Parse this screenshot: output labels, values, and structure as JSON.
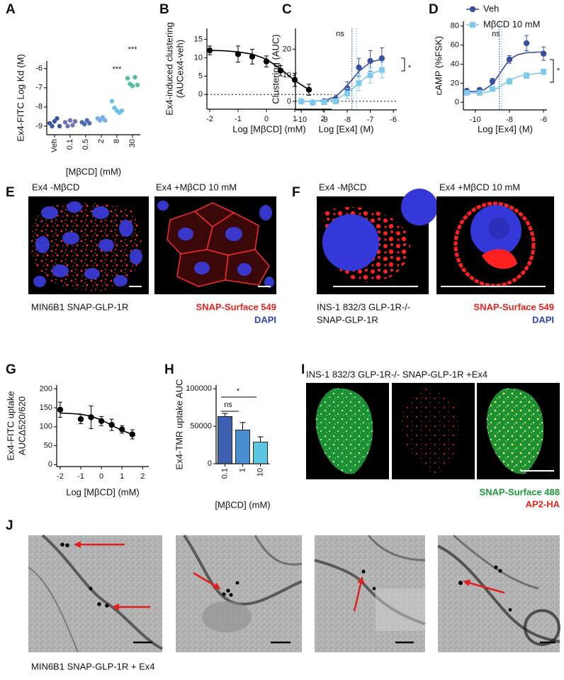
{
  "chart_data": [
    {
      "panel": "A",
      "type": "strip",
      "ylabel": "Ex4-FITC Log Kd (M)",
      "xlabel": "[MβCD] (mM)",
      "categories": [
        "Veh",
        "0.1",
        "0.5",
        "2",
        "8",
        "30"
      ],
      "colors": [
        "#3f54a3",
        "#6d75b8",
        "#4a6cb3",
        "#75aee0",
        "#68c3ea",
        "#55bf9c"
      ],
      "values": [
        [
          -8.85,
          -9.0,
          -8.75,
          -8.6,
          -9.0
        ],
        [
          -8.8,
          -9.0,
          -8.7,
          -8.95,
          -8.75
        ],
        [
          -8.8,
          -8.9,
          -8.7,
          -8.85
        ],
        [
          -8.6,
          -8.7,
          -8.55,
          -8.7
        ],
        [
          -7.7,
          -8.05,
          -8.2,
          -8.3,
          -8.2
        ],
        [
          -6.5,
          -6.8,
          -6.9,
          -6.45,
          -6.85
        ]
      ],
      "ylim": [
        -9.45,
        -5.6
      ],
      "yticks": [
        -6,
        -7,
        -8,
        -9
      ],
      "annotations": [
        "***",
        "***"
      ]
    },
    {
      "panel": "B",
      "type": "line",
      "ylabel": [
        "Ex4-induced clustering",
        "(AUCex4-veh)"
      ],
      "xlabel": "Log [MβCD] (mM)",
      "xlim": [
        -2.1,
        2.3
      ],
      "xticks": [
        -2,
        -1,
        0,
        1,
        2
      ],
      "ylim": [
        -4,
        18
      ],
      "yticks": [
        0,
        5,
        10,
        15
      ],
      "hline": 0,
      "series": [
        {
          "color": "#000000",
          "marker": "circle",
          "x": [
            -2,
            -1,
            -0.5,
            0,
            0.5,
            1,
            1.5
          ],
          "values": [
            12,
            11,
            10.3,
            9,
            6.5,
            4,
            1.3
          ],
          "errors": [
            1.2,
            2.2,
            2,
            1.5,
            1.4,
            1.8,
            1.5
          ],
          "fit_x": [
            -2,
            -1.5,
            -1,
            -0.5,
            0,
            0.5,
            1,
            1.5
          ],
          "fit_values": [
            12,
            11.9,
            11.6,
            11,
            9.6,
            7,
            3.8,
            1.3
          ]
        }
      ]
    },
    {
      "panel": "C",
      "type": "line",
      "ylabel": "Clustering (AUC)",
      "xlabel": "Log [Ex4] (M)",
      "xlim": [
        -10.25,
        -5.85
      ],
      "xticks": [
        -10,
        -9,
        -8,
        -7,
        -6
      ],
      "ylim": [
        -3.3,
        28
      ],
      "yticks": [
        0,
        10,
        20
      ],
      "hline": 0,
      "series": [
        {
          "color": "#3b4fa0",
          "marker": "circle",
          "ec50": -7.8,
          "x": [
            -10,
            -9.5,
            -9,
            -8.5,
            -8,
            -7.5,
            -7,
            -6.5
          ],
          "values": [
            0,
            -0.5,
            0,
            1,
            5,
            13,
            15.5,
            16.5
          ],
          "errors": [
            0.5,
            0.5,
            0.8,
            1.5,
            2.5,
            3.5,
            4,
            4
          ],
          "fit_x": [
            -10,
            -9.5,
            -9,
            -8.5,
            -8,
            -7.5,
            -7,
            -6.5
          ],
          "fit_values": [
            0,
            0,
            0.3,
            1.8,
            6,
            11.5,
            15,
            16.2
          ]
        },
        {
          "color": "#7ccbef",
          "marker": "square",
          "ec50": -7.6,
          "x": [
            -10,
            -9.5,
            -9,
            -8.5,
            -8,
            -7.5,
            -7,
            -6.5
          ],
          "values": [
            0,
            -0.5,
            -0.3,
            0,
            3,
            7,
            10,
            12
          ],
          "errors": [
            0.5,
            0.5,
            0.6,
            1,
            2,
            3,
            3,
            3
          ],
          "fit_x": [
            -10,
            -9.5,
            -9,
            -8.5,
            -8,
            -7.5,
            -7,
            -6.5
          ],
          "fit_values": [
            0,
            0,
            0.1,
            0.8,
            3,
            7,
            10.5,
            12
          ]
        }
      ],
      "annotations": [
        "ns",
        "*"
      ]
    },
    {
      "panel": "D",
      "type": "line",
      "ylabel": "cAMP (%FSK)",
      "xlabel": "Log [Ex4] (M)",
      "xlim": [
        -10.7,
        -5.8
      ],
      "xticks": [
        -10,
        -8,
        -6
      ],
      "ylim": [
        -8,
        85
      ],
      "yticks": [
        0,
        20,
        40,
        60,
        80
      ],
      "series": [
        {
          "name": "Veh",
          "color": "#3b4fa0",
          "marker": "circle",
          "ec50": -8.6,
          "x": [
            -10.5,
            -9.75,
            -9,
            -8,
            -7,
            -6
          ],
          "values": [
            12,
            13,
            22,
            45,
            62,
            51
          ],
          "errors": [
            2,
            2,
            3,
            4,
            8,
            7
          ],
          "fit_x": [
            -10.5,
            -10,
            -9.5,
            -9,
            -8.5,
            -8,
            -7.5,
            -7,
            -6
          ],
          "fit_values": [
            11,
            11.5,
            13,
            19,
            32,
            45,
            50,
            52,
            53
          ]
        },
        {
          "name": "MβCD 10 mM",
          "color": "#7ccbef",
          "marker": "square",
          "ec50": -8.45,
          "x": [
            -10.5,
            -9.75,
            -9,
            -8,
            -7,
            -6
          ],
          "values": [
            10,
            10,
            14,
            22,
            28,
            32
          ],
          "errors": [
            1.5,
            1.5,
            2,
            3,
            3,
            3
          ],
          "fit_x": [
            -10.5,
            -10,
            -9.5,
            -9,
            -8.5,
            -8,
            -7.5,
            -7,
            -6
          ],
          "fit_values": [
            9.5,
            9.6,
            10,
            12,
            17,
            23,
            27,
            29,
            31
          ]
        }
      ],
      "annotations": [
        "ns",
        "*"
      ]
    },
    {
      "panel": "G",
      "type": "line",
      "ylabel": [
        "Ex4-FITC uptake",
        "AUCΔ520/620"
      ],
      "xlabel": "Log [MβCD] (mM)",
      "xlim": [
        -2.17,
        2.3
      ],
      "xticks": [
        -2,
        -1,
        0,
        1,
        2
      ],
      "ylim": [
        -5,
        210
      ],
      "yticks": [
        0,
        50,
        100,
        150,
        200
      ],
      "series": [
        {
          "color": "#000000",
          "marker": "circle",
          "x": [
            -2,
            -1,
            -0.5,
            0,
            0.5,
            1,
            1.5
          ],
          "values": [
            145,
            120,
            125,
            115,
            105,
            93,
            80
          ],
          "errors": [
            20,
            12,
            30,
            12,
            15,
            10,
            12
          ],
          "fit_x": [
            -2,
            -1.5,
            -1,
            -0.5,
            0,
            0.5,
            1,
            1.5
          ],
          "fit_values": [
            136,
            135,
            133,
            128,
            118,
            104,
            90,
            80
          ]
        }
      ]
    },
    {
      "panel": "H",
      "type": "bar",
      "ylabel": "Ex4-TMR uptake AUC",
      "xlabel": "[MβCD] (mM)",
      "categories": [
        "0.1",
        "1",
        "10"
      ],
      "values": [
        63000,
        45000,
        29000
      ],
      "errors": [
        4000,
        10000,
        7000
      ],
      "colors": [
        "#3f5fb0",
        "#4a8fd4",
        "#5cc6e0"
      ],
      "ylim": [
        0,
        105000
      ],
      "yticks": [
        0,
        50000,
        100000
      ],
      "annotations": [
        "ns",
        "*"
      ]
    }
  ],
  "image_panels": [
    {
      "panel": "E",
      "labels": [
        "Ex4 -MβCD",
        "Ex4 +MβCD 10 mM"
      ],
      "caption": [
        "MIN6B1 SNAP-GLP-1R"
      ],
      "stains": [
        "SNAP-Surface 549",
        "DAPI"
      ]
    },
    {
      "panel": "F",
      "labels": [
        "Ex4 -MβCD",
        "Ex4 +MβCD 10 mM"
      ],
      "caption": [
        "INS-1 832/3 GLP-1R-/-",
        "SNAP-GLP-1R"
      ],
      "stains": [
        "SNAP-Surface 549",
        "DAPI"
      ]
    },
    {
      "panel": "I",
      "title": "INS-1 832/3 GLP-1R-/- SNAP-GLP-1R +Ex4",
      "stains": [
        "SNAP-Surface 488",
        "AP2-HA"
      ]
    },
    {
      "panel": "J",
      "caption": [
        "MIN6B1 SNAP-GLP-1R + Ex4"
      ]
    }
  ]
}
